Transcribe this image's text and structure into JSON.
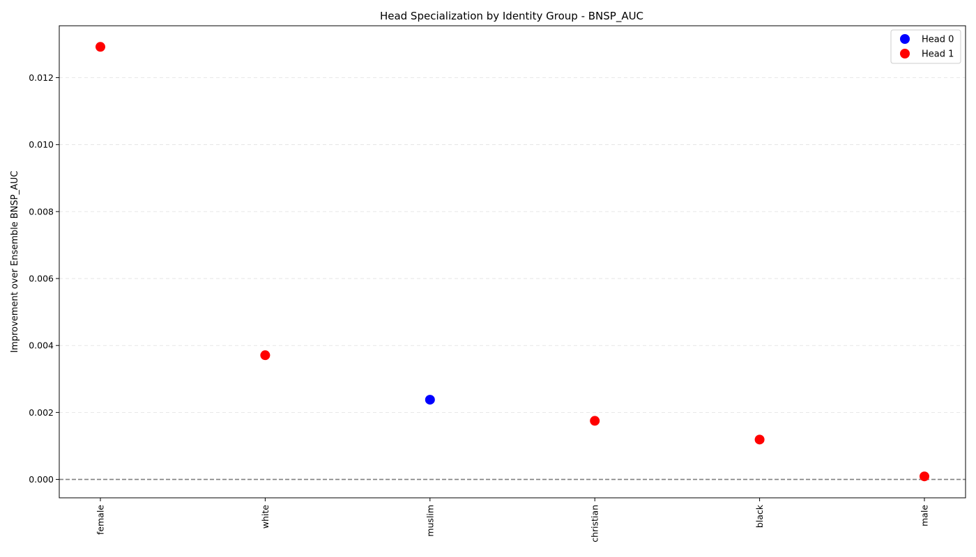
{
  "chart_data": {
    "type": "scatter",
    "title": "Head Specialization by Identity Group - BNSP_AUC",
    "xlabel": "",
    "ylabel": "Improvement over Ensemble BNSP_AUC",
    "categories": [
      "female",
      "white",
      "muslim",
      "christian",
      "black",
      "male"
    ],
    "ylim": [
      -0.00055,
      0.01355
    ],
    "yticks": [
      0.0,
      0.002,
      0.004,
      0.006,
      0.008,
      0.01,
      0.012
    ],
    "ytick_labels": [
      "0.000",
      "0.002",
      "0.004",
      "0.006",
      "0.008",
      "0.010",
      "0.012"
    ],
    "grid": "horizontal dashed",
    "reference_line": 0.0,
    "legend_position": "top-right",
    "series": [
      {
        "name": "Head 0",
        "color": "#0000ff",
        "points": [
          {
            "category": "muslim",
            "value": 0.00238
          }
        ]
      },
      {
        "name": "Head 1",
        "color": "#ff0000",
        "points": [
          {
            "category": "female",
            "value": 0.01292
          },
          {
            "category": "white",
            "value": 0.00371
          },
          {
            "category": "christian",
            "value": 0.00175
          },
          {
            "category": "black",
            "value": 0.00119
          },
          {
            "category": "male",
            "value": 9e-05
          }
        ]
      }
    ]
  }
}
